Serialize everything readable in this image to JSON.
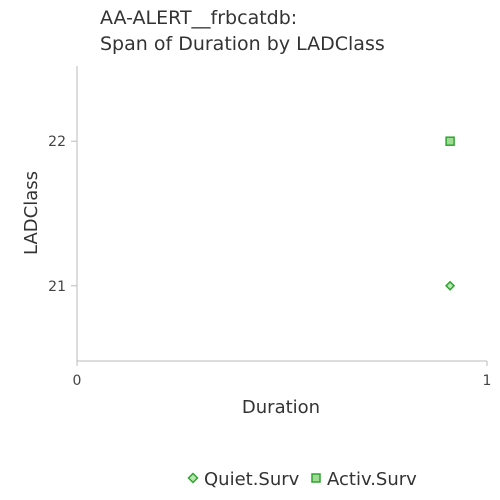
{
  "chart_data": {
    "type": "scatter",
    "title_lines": [
      "AA-ALERT__frbcatdb:",
      "Span of Duration by LADClass"
    ],
    "xlabel": "Duration",
    "ylabel": "LADClass",
    "xlim": [
      0,
      1
    ],
    "ylim": [
      20.48,
      22.52
    ],
    "x_ticks": [
      {
        "value": 0,
        "label": "0"
      },
      {
        "value": 1,
        "label": "1"
      }
    ],
    "y_ticks": [
      {
        "value": 21,
        "label": "21"
      },
      {
        "value": 22,
        "label": "22"
      }
    ],
    "series": [
      {
        "name": "Quiet.Surv",
        "marker": "diamond",
        "fill": "#b8e6b0",
        "stroke": "#2fa42f",
        "points": [
          {
            "x": 0.91,
            "y": 21
          }
        ]
      },
      {
        "name": "Activ.Surv",
        "marker": "square",
        "fill": "#9edc94",
        "stroke": "#2fa42f",
        "points": [
          {
            "x": 0.91,
            "y": 22
          }
        ]
      }
    ],
    "legend": {
      "position": "bottom"
    }
  }
}
